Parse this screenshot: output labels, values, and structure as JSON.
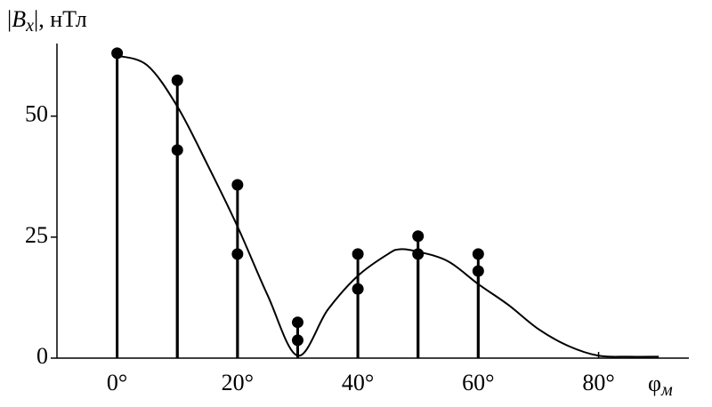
{
  "chart_data": {
    "type": "stem",
    "ylabel": [
      "|",
      "B",
      "x",
      "|, нТл"
    ],
    "xlabel": [
      "φ",
      "м"
    ],
    "xlim": [
      -10,
      95
    ],
    "ylim": [
      0,
      65
    ],
    "xticks": [
      {
        "value": 0,
        "label": "0°"
      },
      {
        "value": 20,
        "label": "20°"
      },
      {
        "value": 40,
        "label": "40°"
      },
      {
        "value": 60,
        "label": "60°"
      },
      {
        "value": 80,
        "label": "80°"
      }
    ],
    "yticks": [
      0,
      25,
      50
    ],
    "color": "#000000",
    "points": {
      "x": [
        0,
        10,
        10,
        20,
        20,
        30,
        30,
        40,
        40,
        50,
        50,
        60,
        60
      ],
      "values": [
        63,
        57.4,
        43,
        35.8,
        21.5,
        7.4,
        3.7,
        21.5,
        14.3,
        25.2,
        21.5,
        21.5,
        18
      ]
    },
    "curve": {
      "x": [
        0,
        5,
        10,
        15,
        20,
        25,
        30,
        35,
        40,
        45,
        47,
        50,
        55,
        60,
        65,
        70,
        75,
        80,
        85,
        90
      ],
      "values": [
        62.5,
        60.5,
        52,
        40,
        27.2,
        13,
        0.5,
        10,
        17,
        21.5,
        22.5,
        22,
        20,
        15.3,
        11,
        6,
        2.5,
        0.5,
        0.3,
        0.3
      ]
    }
  }
}
